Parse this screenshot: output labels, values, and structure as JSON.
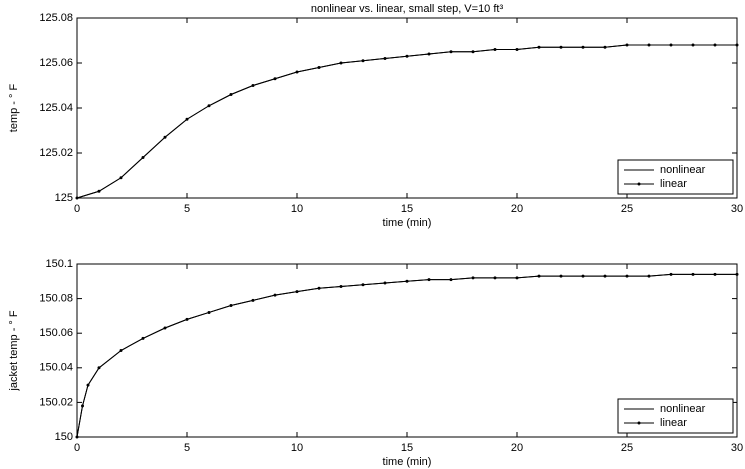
{
  "chart_data": [
    {
      "type": "line",
      "title": "nonlinear vs. linear, small step, V=10 ft³",
      "xlabel": "time (min)",
      "ylabel": "temp - ° F",
      "x": [
        0,
        1,
        2,
        3,
        4,
        5,
        6,
        7,
        8,
        9,
        10,
        11,
        12,
        13,
        14,
        15,
        16,
        17,
        18,
        19,
        20,
        21,
        22,
        23,
        24,
        25,
        26,
        27,
        28,
        29,
        30
      ],
      "series": [
        {
          "name": "nonlinear",
          "color": "#000000",
          "values": [
            125,
            125.003,
            125.009,
            125.018,
            125.027,
            125.035,
            125.041,
            125.046,
            125.05,
            125.053,
            125.056,
            125.058,
            125.06,
            125.061,
            125.062,
            125.063,
            125.064,
            125.065,
            125.065,
            125.066,
            125.066,
            125.067,
            125.067,
            125.067,
            125.067,
            125.068,
            125.068,
            125.068,
            125.068,
            125.068,
            125.068
          ]
        },
        {
          "name": "linear",
          "color": "#000000",
          "marker": "dot",
          "values": [
            125,
            125.003,
            125.009,
            125.018,
            125.027,
            125.035,
            125.041,
            125.046,
            125.05,
            125.053,
            125.056,
            125.058,
            125.06,
            125.061,
            125.062,
            125.063,
            125.064,
            125.065,
            125.065,
            125.066,
            125.066,
            125.067,
            125.067,
            125.067,
            125.067,
            125.068,
            125.068,
            125.068,
            125.068,
            125.068,
            125.068
          ]
        }
      ],
      "xlim": [
        0,
        30
      ],
      "xticks": [
        0,
        5,
        10,
        15,
        20,
        25,
        30
      ],
      "ylim": [
        125,
        125.08
      ],
      "yticks": [
        125,
        125.02,
        125.04,
        125.06,
        125.08
      ],
      "grid": false,
      "legend": "lower right"
    },
    {
      "type": "line",
      "xlabel": "time (min)",
      "ylabel": "jacket temp - ° F",
      "x": [
        0,
        0.25,
        0.5,
        1,
        2,
        3,
        4,
        5,
        6,
        7,
        8,
        9,
        10,
        11,
        12,
        13,
        14,
        15,
        16,
        17,
        18,
        19,
        20,
        21,
        22,
        23,
        24,
        25,
        26,
        27,
        28,
        29,
        30
      ],
      "series": [
        {
          "name": "nonlinear",
          "color": "#000000",
          "values": [
            150,
            150.018,
            150.03,
            150.04,
            150.05,
            150.057,
            150.063,
            150.068,
            150.072,
            150.076,
            150.079,
            150.082,
            150.084,
            150.086,
            150.087,
            150.088,
            150.089,
            150.09,
            150.091,
            150.091,
            150.092,
            150.092,
            150.092,
            150.093,
            150.093,
            150.093,
            150.093,
            150.093,
            150.093,
            150.094,
            150.094,
            150.094,
            150.094
          ]
        },
        {
          "name": "linear",
          "color": "#000000",
          "marker": "dot",
          "values": [
            150,
            150.018,
            150.03,
            150.04,
            150.05,
            150.057,
            150.063,
            150.068,
            150.072,
            150.076,
            150.079,
            150.082,
            150.084,
            150.086,
            150.087,
            150.088,
            150.089,
            150.09,
            150.091,
            150.091,
            150.092,
            150.092,
            150.092,
            150.093,
            150.093,
            150.093,
            150.093,
            150.093,
            150.093,
            150.094,
            150.094,
            150.094,
            150.094
          ]
        }
      ],
      "xlim": [
        0,
        30
      ],
      "xticks": [
        0,
        5,
        10,
        15,
        20,
        25,
        30
      ],
      "ylim": [
        150,
        150.1
      ],
      "yticks": [
        150,
        150.02,
        150.04,
        150.06,
        150.08,
        150.1
      ],
      "grid": false,
      "legend": "lower right"
    }
  ]
}
